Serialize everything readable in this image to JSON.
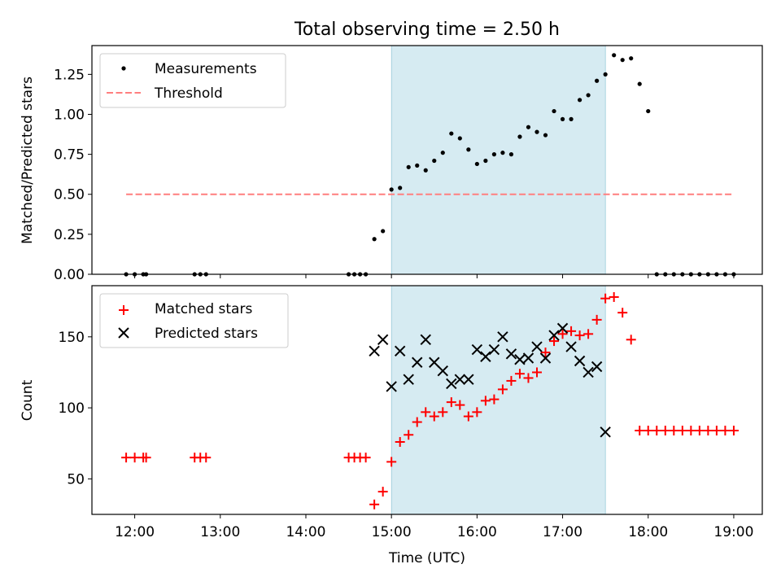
{
  "figure": {
    "title": "Total observing time = 2.50 h",
    "xlabel": "Time (UTC)"
  },
  "chart_data": [
    {
      "type": "scatter",
      "ylabel": "Matched/Predicted stars",
      "xlim": [
        "11:30",
        "19:20"
      ],
      "ylim": [
        0,
        1.43
      ],
      "yticks": [
        0.0,
        0.25,
        0.5,
        0.75,
        1.0,
        1.25
      ],
      "ytick_labels": [
        "0.00",
        "0.25",
        "0.50",
        "0.75",
        "1.00",
        "1.25"
      ],
      "shaded_interval": {
        "from": "15:00",
        "to": "17:30",
        "color": "#add8e6"
      },
      "legend": {
        "placement": "upper-left",
        "entries": [
          "Measurements",
          "Threshold"
        ]
      },
      "series": [
        {
          "name": "Measurements",
          "marker": "dot",
          "color": "#000000",
          "x": [
            "11:54",
            "12:00",
            "12:06",
            "12:08",
            "12:42",
            "12:46",
            "12:50",
            "14:30",
            "14:34",
            "14:38",
            "14:42",
            "14:48",
            "14:54",
            "15:00",
            "15:06",
            "15:12",
            "15:18",
            "15:24",
            "15:30",
            "15:36",
            "15:42",
            "15:48",
            "15:54",
            "16:00",
            "16:06",
            "16:12",
            "16:18",
            "16:24",
            "16:30",
            "16:36",
            "16:42",
            "16:48",
            "16:54",
            "17:00",
            "17:06",
            "17:12",
            "17:18",
            "17:24",
            "17:30",
            "17:36",
            "17:42",
            "17:48",
            "17:54",
            "18:00",
            "18:06",
            "18:12",
            "18:18",
            "18:24",
            "18:30",
            "18:36",
            "18:42",
            "18:48",
            "18:54",
            "19:00"
          ],
          "y": [
            0,
            0,
            0,
            0,
            0,
            0,
            0,
            0,
            0,
            0,
            0,
            0.22,
            0.27,
            0.53,
            0.54,
            0.67,
            0.68,
            0.65,
            0.71,
            0.76,
            0.88,
            0.85,
            0.78,
            0.69,
            0.71,
            0.75,
            0.76,
            0.75,
            0.86,
            0.92,
            0.89,
            0.87,
            1.02,
            0.97,
            0.97,
            1.09,
            1.12,
            1.21,
            1.25,
            1.37,
            1.34,
            1.35,
            1.19,
            1.02,
            0,
            0,
            0,
            0,
            0,
            0,
            0,
            0,
            0,
            0
          ]
        },
        {
          "name": "Threshold",
          "style": "dashed",
          "color": "#ff7f7f",
          "x": [
            "11:54",
            "19:00"
          ],
          "y": [
            0.5,
            0.5
          ]
        }
      ]
    },
    {
      "type": "scatter",
      "ylabel": "Count",
      "xlim": [
        "11:30",
        "19:20"
      ],
      "ylim": [
        25,
        186
      ],
      "yticks": [
        50,
        100,
        150
      ],
      "ytick_labels": [
        "50",
        "100",
        "150"
      ],
      "xticks": [
        "12:00",
        "13:00",
        "14:00",
        "15:00",
        "16:00",
        "17:00",
        "18:00",
        "19:00"
      ],
      "xtick_labels": [
        "12:00",
        "13:00",
        "14:00",
        "15:00",
        "16:00",
        "17:00",
        "18:00",
        "19:00"
      ],
      "shaded_interval": {
        "from": "15:00",
        "to": "17:30",
        "color": "#add8e6"
      },
      "legend": {
        "placement": "upper-left",
        "entries": [
          "Matched stars",
          "Predicted stars"
        ]
      },
      "series": [
        {
          "name": "Matched stars",
          "marker": "plus",
          "color": "#ff0000",
          "x": [
            "11:54",
            "12:00",
            "12:06",
            "12:08",
            "12:42",
            "12:46",
            "12:50",
            "14:30",
            "14:34",
            "14:38",
            "14:42",
            "14:48",
            "14:54",
            "15:00",
            "15:06",
            "15:12",
            "15:18",
            "15:24",
            "15:30",
            "15:36",
            "15:42",
            "15:48",
            "15:54",
            "16:00",
            "16:06",
            "16:12",
            "16:18",
            "16:24",
            "16:30",
            "16:36",
            "16:42",
            "16:48",
            "16:54",
            "17:00",
            "17:06",
            "17:12",
            "17:18",
            "17:24",
            "17:30",
            "17:36",
            "17:42",
            "17:48",
            "17:54",
            "18:00",
            "18:06",
            "18:12",
            "18:18",
            "18:24",
            "18:30",
            "18:36",
            "18:42",
            "18:48",
            "18:54",
            "19:00"
          ],
          "y": [
            65,
            65,
            65,
            65,
            65,
            65,
            65,
            65,
            65,
            65,
            65,
            32,
            41,
            62,
            76,
            81,
            90,
            97,
            94,
            97,
            104,
            102,
            94,
            97,
            105,
            106,
            113,
            119,
            124,
            121,
            125,
            139,
            147,
            152,
            154,
            151,
            152,
            162,
            177,
            178,
            167,
            148,
            84,
            84,
            84,
            84,
            84,
            84,
            84,
            84,
            84,
            84,
            84,
            84
          ]
        },
        {
          "name": "Predicted stars",
          "marker": "x",
          "color": "#000000",
          "x": [
            "14:48",
            "14:54",
            "15:00",
            "15:06",
            "15:12",
            "15:18",
            "15:24",
            "15:30",
            "15:36",
            "15:42",
            "15:48",
            "15:54",
            "16:00",
            "16:06",
            "16:12",
            "16:18",
            "16:24",
            "16:30",
            "16:36",
            "16:42",
            "16:48",
            "16:54",
            "17:00",
            "17:06",
            "17:12",
            "17:18",
            "17:24",
            "17:30"
          ],
          "y": [
            140,
            148,
            115,
            140,
            120,
            132,
            148,
            132,
            126,
            117,
            120,
            120,
            141,
            136,
            141,
            150,
            138,
            134,
            135,
            143,
            135,
            151,
            156,
            143,
            133,
            125,
            129,
            83
          ]
        }
      ]
    }
  ]
}
